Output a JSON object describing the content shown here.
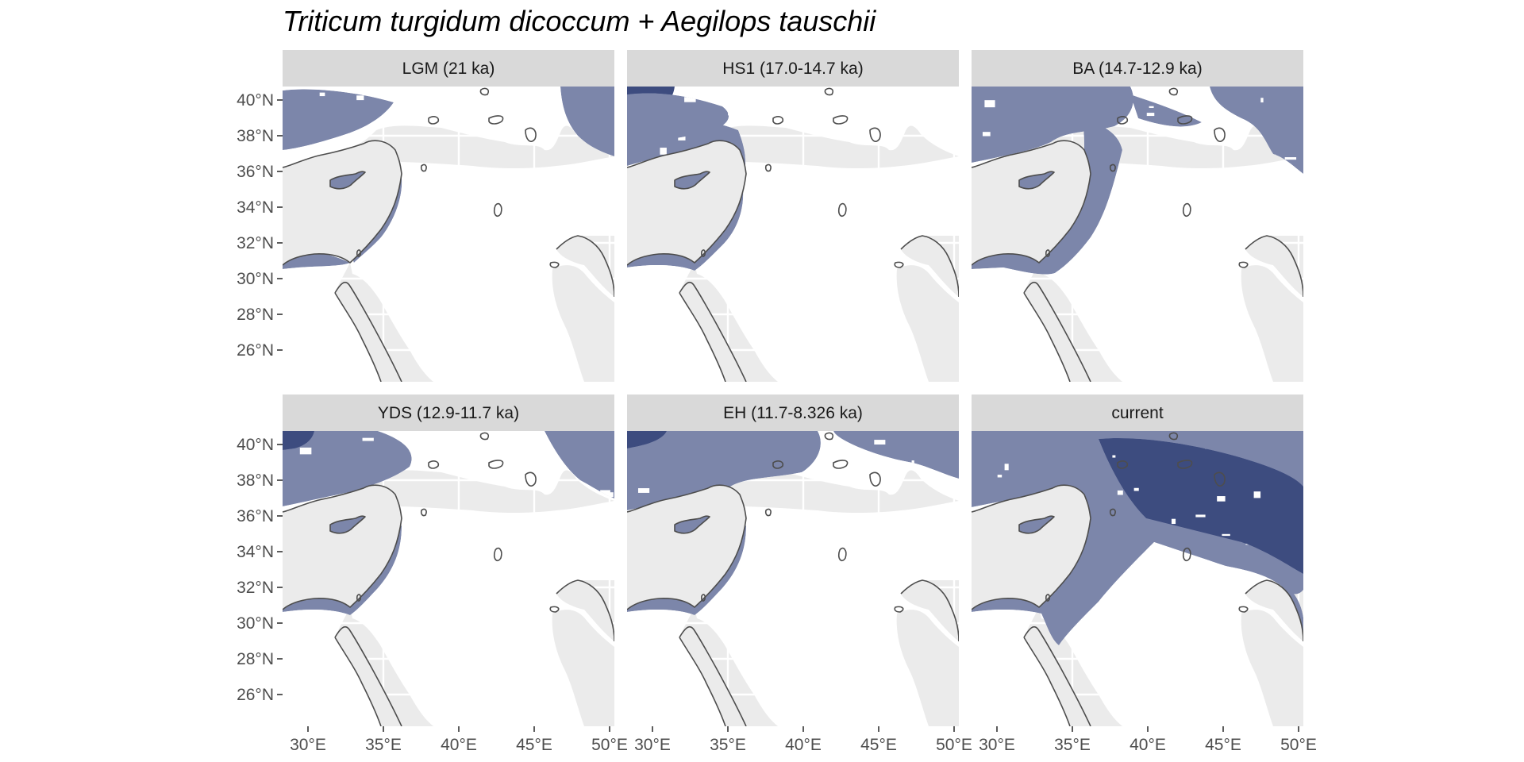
{
  "title": "Triticum turgidum dicoccum + Aegilops tauschii",
  "colors": {
    "panel_bg": "#ebebeb",
    "grid": "#ffffff",
    "strip_bg": "#d9d9d9",
    "land": "#ffffff",
    "suitable": "#7c86aa",
    "highly_suitable": "#3d4c7f",
    "coast": "#4d4d4d"
  },
  "panels": [
    {
      "label": "LGM (21 ka)"
    },
    {
      "label": "HS1 (17.0-14.7 ka)"
    },
    {
      "label": "BA (14.7-12.9 ka)"
    },
    {
      "label": "YDS (12.9-11.7 ka)"
    },
    {
      "label": "EH (11.7-8.326 ka)"
    },
    {
      "label": "current"
    }
  ],
  "axes": {
    "x_ticks": [
      "30°E",
      "35°E",
      "40°E",
      "45°E",
      "50°E"
    ],
    "x_tick_values": [
      30,
      35,
      40,
      45,
      50
    ],
    "y_ticks": [
      "40°N",
      "38°N",
      "36°N",
      "34°N",
      "32°N",
      "30°N",
      "28°N",
      "26°N"
    ],
    "y_tick_values": [
      40,
      38,
      36,
      34,
      32,
      30,
      28,
      26
    ]
  }
}
